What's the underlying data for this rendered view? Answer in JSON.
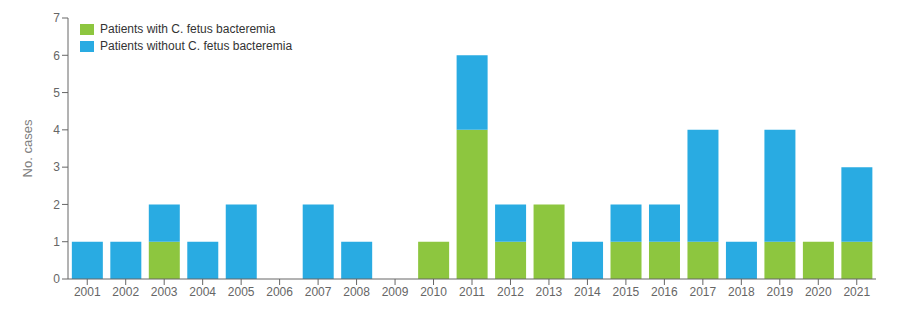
{
  "chart_data": {
    "type": "bar",
    "stacked": true,
    "categories": [
      "2001",
      "2002",
      "2003",
      "2004",
      "2005",
      "2006",
      "2007",
      "2008",
      "2009",
      "2010",
      "2011",
      "2012",
      "2013",
      "2014",
      "2015",
      "2016",
      "2017",
      "2018",
      "2019",
      "2020",
      "2021"
    ],
    "series": [
      {
        "name": "Patients with C. fetus bacteremia",
        "color": "#8dc63f",
        "values": [
          0,
          0,
          1,
          0,
          0,
          0,
          0,
          0,
          0,
          1,
          4,
          1,
          2,
          0,
          1,
          1,
          1,
          0,
          1,
          1,
          1
        ]
      },
      {
        "name": "Patients without C. fetus bacteremia",
        "color": "#29abe2",
        "values": [
          1,
          1,
          1,
          1,
          2,
          0,
          2,
          1,
          0,
          0,
          2,
          1,
          0,
          1,
          1,
          1,
          3,
          1,
          3,
          0,
          2
        ]
      }
    ],
    "ylabel": "No. cases",
    "ylim": [
      0,
      7
    ],
    "yticks": [
      0,
      1,
      2,
      3,
      4,
      5,
      6,
      7
    ],
    "legend": "upper left",
    "grid": false
  }
}
